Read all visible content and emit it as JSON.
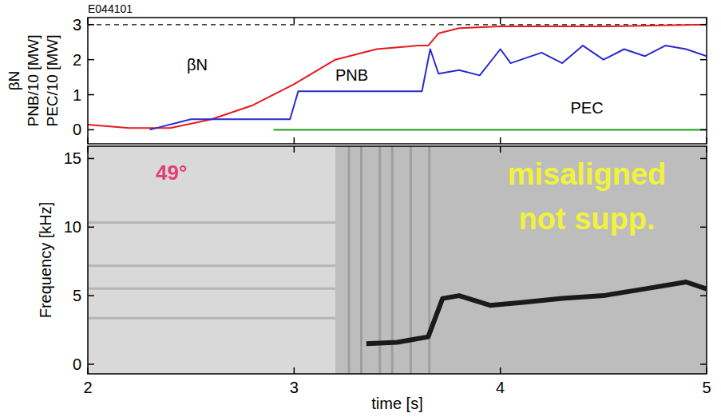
{
  "chart_data": [
    {
      "type": "line",
      "title": "E044101",
      "y_label": [
        "βN",
        "PNB/10 [MW]",
        "PEC/10 [MW]"
      ],
      "xlim": [
        2,
        5
      ],
      "xticks": [
        2,
        3,
        4,
        5
      ],
      "ylim": [
        -0.4,
        3.2
      ],
      "yticks": [
        0,
        1,
        2,
        3
      ],
      "hline": 3,
      "tick_labels": "y",
      "grid": false,
      "series": [
        {
          "name": "βN",
          "color": "#e8191e",
          "line_style": "solid",
          "x": [
            2,
            2.2,
            2.4,
            2.6,
            2.8,
            3.0,
            3.2,
            3.4,
            3.6,
            3.65,
            3.7,
            3.8,
            4.0,
            4.5,
            5.0
          ],
          "values": [
            0.15,
            0.05,
            0.05,
            0.3,
            0.7,
            1.3,
            2.0,
            2.3,
            2.4,
            2.4,
            2.75,
            2.9,
            2.95,
            2.95,
            3.0
          ]
        },
        {
          "name": "PNB",
          "color": "#2a2ad0",
          "line_style": "solid",
          "x": [
            2.3,
            2.5,
            2.98,
            3.02,
            3.62,
            3.66,
            3.7,
            3.8,
            3.9,
            4.0,
            4.05,
            4.2,
            4.3,
            4.4,
            4.5,
            4.6,
            4.7,
            4.8,
            4.9,
            5.0
          ],
          "values": [
            0,
            0.3,
            0.3,
            1.1,
            1.1,
            2.3,
            1.6,
            1.7,
            1.55,
            2.3,
            1.9,
            2.2,
            1.9,
            2.4,
            2.0,
            2.3,
            2.1,
            2.4,
            2.3,
            2.1
          ]
        },
        {
          "name": "PEC",
          "color": "#1aa01a",
          "line_style": "solid",
          "x": [
            2.9,
            5.0
          ],
          "values": [
            0,
            0
          ]
        }
      ]
    },
    {
      "type": "line",
      "y_label": "Frequency [kHz]",
      "x_label": "time [s]",
      "xlim": [
        2,
        5
      ],
      "xticks": [
        2,
        3,
        4,
        5
      ],
      "ylim": [
        -0.7,
        15.9
      ],
      "yticks": [
        0,
        5,
        10,
        15
      ],
      "grid": false,
      "annotations": [
        "49°",
        "misaligned",
        "not supp."
      ],
      "series": [
        {
          "color": "#1a1a1a",
          "line_style": "solid",
          "x": [
            3.35,
            3.5,
            3.65,
            3.72,
            3.8,
            3.95,
            4.1,
            4.3,
            4.5,
            4.7,
            4.9,
            5.0
          ],
          "values": [
            1.5,
            1.6,
            2.0,
            4.8,
            5.0,
            4.3,
            4.5,
            4.8,
            5.0,
            5.5,
            6.0,
            5.5
          ]
        }
      ]
    }
  ]
}
